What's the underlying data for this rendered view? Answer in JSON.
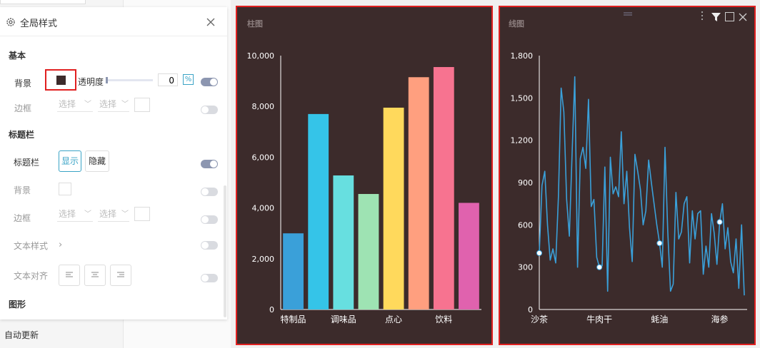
{
  "sidebar": {
    "auto_update": "自动更新"
  },
  "panel": {
    "title": "全局样式",
    "basic": {
      "heading": "基本",
      "background_label": "背景",
      "background_color": "#3c2b2b",
      "opacity_label": "透明度",
      "opacity_value": "0",
      "opacity_unit": "%",
      "border_label": "边框",
      "select_placeholder": "选择"
    },
    "titlebar": {
      "heading": "标题栏",
      "label": "标题栏",
      "show": "显示",
      "hide": "隐藏",
      "background_label": "背景",
      "border_label": "边框",
      "text_style_label": "文本样式",
      "text_align_label": "文本对齐"
    },
    "shape": {
      "heading": "图形"
    }
  },
  "charts": {
    "bar_title": "柱图",
    "line_title": "线图"
  },
  "colors": {
    "accent": "#3aa3c6",
    "highlight": "#e02020",
    "chart_bg": "#3c2b2b"
  },
  "chart_data": [
    {
      "type": "bar",
      "title": "柱图",
      "categories": [
        "特制品",
        "",
        "调味品",
        "",
        "点心",
        "",
        "饮料",
        ""
      ],
      "values": [
        3000,
        7700,
        5280,
        4550,
        7950,
        9150,
        9550,
        4200
      ],
      "colors": [
        "#3aa0d9",
        "#35c4e8",
        "#67dfe0",
        "#9ee3b3",
        "#ffd95c",
        "#ff9f7f",
        "#f77390",
        "#e062ae"
      ],
      "yticks": [
        0,
        2000,
        4000,
        6000,
        8000,
        10000
      ],
      "ytick_labels": [
        "0",
        "2,000",
        "4,000",
        "6,000",
        "8,000",
        "10,000"
      ],
      "ylim": [
        0,
        10000
      ]
    },
    {
      "type": "line",
      "title": "线图",
      "x_labels": [
        {
          "index": 0,
          "label": "沙茶"
        },
        {
          "index": 22,
          "label": "牛肉干"
        },
        {
          "index": 44,
          "label": "蚝油"
        },
        {
          "index": 66,
          "label": "海参"
        }
      ],
      "values": [
        400,
        880,
        980,
        600,
        350,
        430,
        330,
        800,
        1570,
        1400,
        780,
        520,
        1100,
        1650,
        300,
        1070,
        1150,
        1000,
        1490,
        730,
        780,
        370,
        300,
        310,
        1010,
        130,
        1080,
        820,
        870,
        800,
        1260,
        750,
        980,
        580,
        340,
        1100,
        980,
        850,
        600,
        700,
        1060,
        900,
        750,
        600,
        470,
        300,
        1150,
        550,
        130,
        180,
        830,
        500,
        550,
        750,
        800,
        330,
        700,
        500,
        680,
        700,
        250,
        450,
        300,
        680,
        540,
        320,
        620,
        750,
        430,
        580,
        340,
        260,
        500,
        150,
        600,
        100
      ],
      "markers": [
        0,
        22,
        44,
        66
      ],
      "color": "#3aa0d9",
      "yticks": [
        0,
        300,
        600,
        900,
        1200,
        1500,
        1800
      ],
      "ytick_labels": [
        "0",
        "300",
        "600",
        "900",
        "1,200",
        "1,500",
        "1,800"
      ],
      "ylim": [
        0,
        1800
      ]
    }
  ]
}
